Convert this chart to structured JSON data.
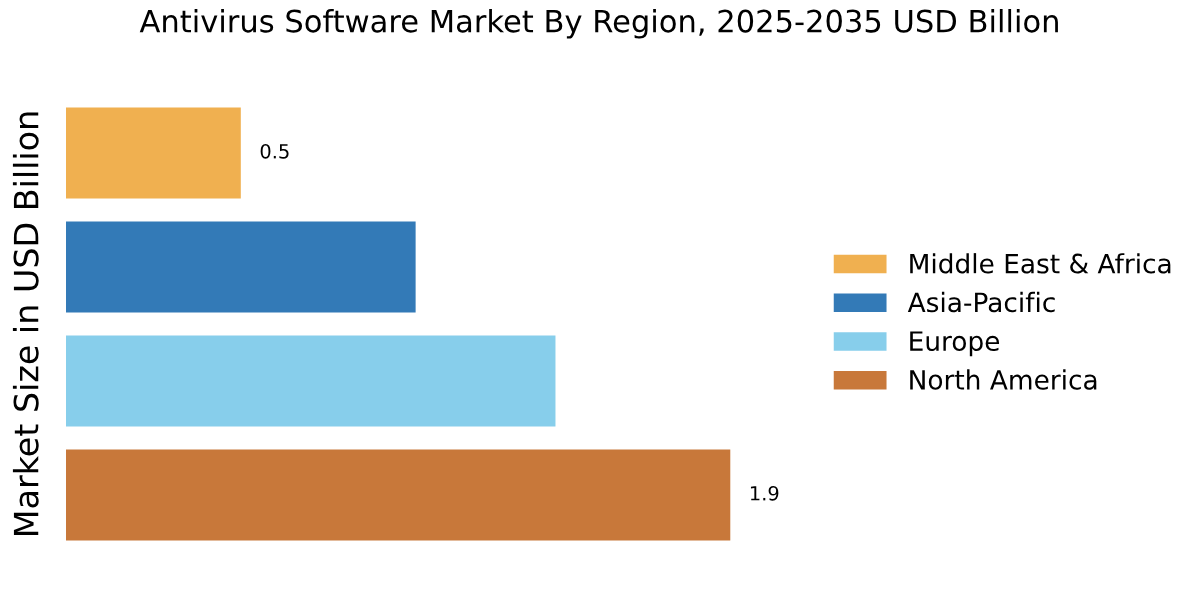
{
  "chart_data": {
    "type": "bar",
    "orientation": "horizontal",
    "stacked": true,
    "title": "Antivirus Software Market By Region, 2025-2035 USD Billion",
    "ylabel": "Market Size in USD Billion",
    "categories": [
      null,
      null,
      null,
      null
    ],
    "series": [
      {
        "name": "Middle East & Africa",
        "color": "#f0b050",
        "values": [
          0.5,
          null,
          null,
          null
        ],
        "value_labels": [
          "0.5",
          null,
          null,
          null
        ]
      },
      {
        "name": "Asia-Pacific",
        "color": "#337ab7",
        "values": [
          null,
          1.0,
          null,
          null
        ]
      },
      {
        "name": "Europe",
        "color": "#87ceeb",
        "values": [
          null,
          null,
          1.4,
          null
        ]
      },
      {
        "name": "North America",
        "color": "#c8783a",
        "values": [
          null,
          null,
          null,
          1.9
        ],
        "value_labels": [
          null,
          null,
          null,
          "1.9"
        ]
      }
    ],
    "legend": "right",
    "tick_labels": false
  }
}
